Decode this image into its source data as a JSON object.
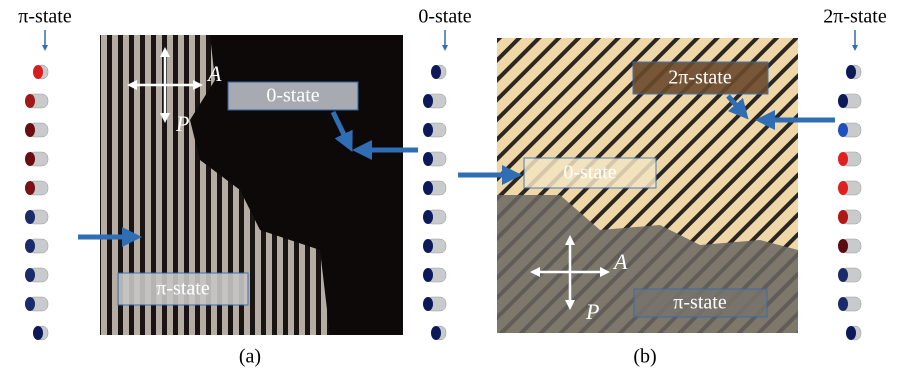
{
  "columns": [
    "π-state",
    "0-state",
    "2π-state"
  ],
  "panels": [
    {
      "caption": "(a)",
      "analyzer": "A",
      "polarizer": "P",
      "labels": [
        "0-state",
        "π-state"
      ]
    },
    {
      "caption": "(b)",
      "analyzer": "A",
      "polarizer": "P",
      "labels": [
        "2π-state",
        "0-state",
        "π-state"
      ]
    }
  ]
}
